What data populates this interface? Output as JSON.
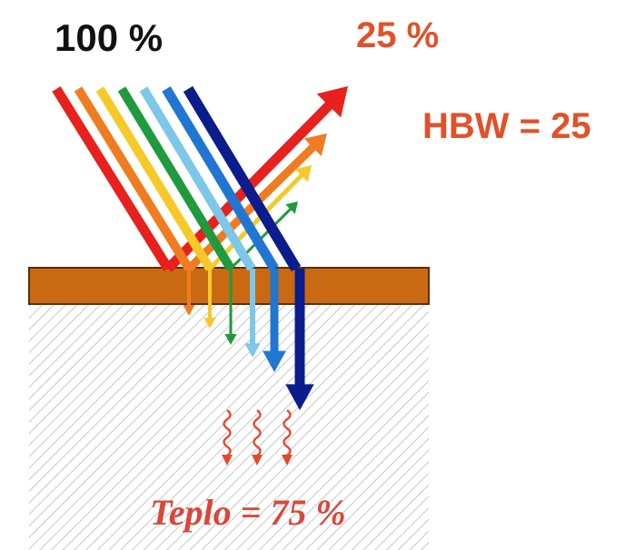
{
  "labels": {
    "incident": "100 %",
    "reflected": "25 %",
    "hbw": "HBW = 25",
    "heat": "Teplo = 75 %"
  },
  "colors": {
    "text_dark": "#111111",
    "text_accent": "#e2512a",
    "heat_text": "#d9463a",
    "heat_arrows": "#e8472c",
    "coating": "#c96a12",
    "coating_stroke": "#5a3008",
    "substrate_hatch": "#b9b9b9"
  },
  "rays": [
    {
      "name": "red",
      "color": "#e8201e"
    },
    {
      "name": "orange",
      "color": "#f07c22"
    },
    {
      "name": "yellow",
      "color": "#f6c92a"
    },
    {
      "name": "green",
      "color": "#1f9a3c"
    },
    {
      "name": "light-blue",
      "color": "#7cc7ea"
    },
    {
      "name": "blue",
      "color": "#2176d2"
    },
    {
      "name": "dark-blue",
      "color": "#0b1d8c"
    }
  ]
}
